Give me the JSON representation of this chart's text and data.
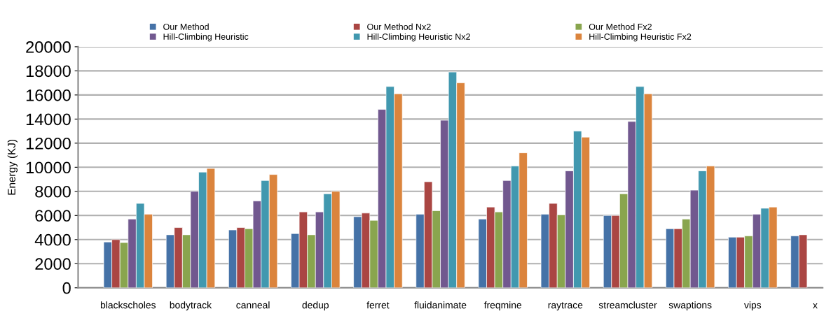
{
  "chart_data": {
    "type": "bar",
    "ylabel": "Energy (KJ)",
    "categories": [
      "blackscholes",
      "bodytrack",
      "canneal",
      "dedup",
      "ferret",
      "fluidanimate",
      "freqmine",
      "raytrace",
      "streamcluster",
      "swaptions",
      "vips",
      "x"
    ],
    "series": [
      {
        "name": "Our Method",
        "color": "#4572a7",
        "values": [
          3800,
          4400,
          4800,
          4500,
          5900,
          6100,
          5700,
          6100,
          6000,
          4900,
          4200,
          4300
        ]
      },
      {
        "name": "Our Method Nx2",
        "color": "#aa4643",
        "values": [
          4000,
          5000,
          5000,
          6300,
          6200,
          8800,
          6700,
          7000,
          6000,
          4900,
          4200,
          4400
        ]
      },
      {
        "name": "Our Method Fx2",
        "color": "#89a54e",
        "values": [
          3750,
          4400,
          4900,
          4400,
          5600,
          6400,
          6300,
          6050,
          7800,
          5700,
          4300,
          null
        ]
      },
      {
        "name": "Hill-Climbing Heuristic",
        "color": "#71588f",
        "values": [
          5700,
          8000,
          7200,
          6300,
          14800,
          13900,
          8900,
          9700,
          13800,
          8100,
          6100,
          null
        ]
      },
      {
        "name": "Hill-Climbing Heuristic Nx2",
        "color": "#4198af",
        "values": [
          7000,
          9600,
          8900,
          7800,
          16700,
          17900,
          10100,
          13000,
          16700,
          9700,
          6600,
          null
        ]
      },
      {
        "name": "Hill-Climbing Heuristic Fx2",
        "color": "#db843d",
        "values": [
          6100,
          9900,
          9400,
          8000,
          16100,
          17000,
          11200,
          12500,
          16100,
          10100,
          6700,
          null
        ]
      }
    ],
    "ylim": [
      0,
      20000
    ],
    "yticks": [
      0,
      2000,
      4000,
      6000,
      8000,
      10000,
      12000,
      14000,
      16000,
      18000,
      20000
    ],
    "grid": "y",
    "legend": "top"
  }
}
